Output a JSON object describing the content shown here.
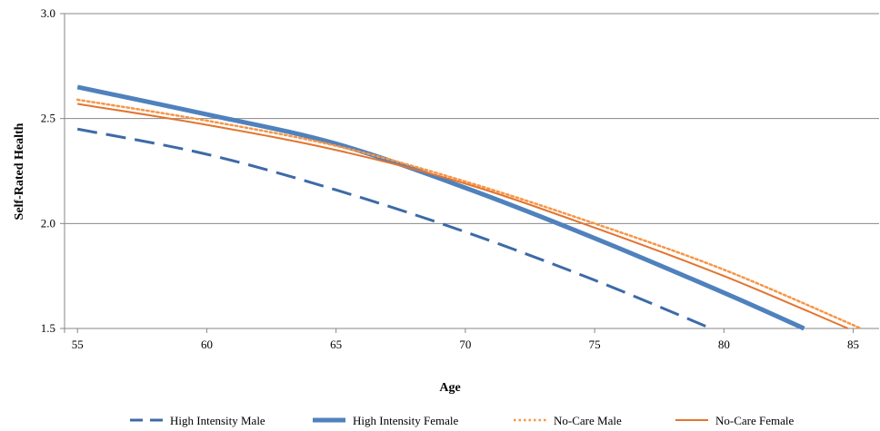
{
  "chart_data": {
    "type": "line",
    "title": "",
    "xlabel": "Age",
    "ylabel": "Self-Rated Health",
    "xlim": [
      54.5,
      86
    ],
    "ylim": [
      1.5,
      3.0
    ],
    "x_ticks": [
      55,
      60,
      65,
      70,
      75,
      80,
      85
    ],
    "y_ticks": [
      1.5,
      2.0,
      2.5,
      3.0
    ],
    "y_tick_labels": [
      "1.5",
      "2.0",
      "2.5",
      "3.0"
    ],
    "grid": "horizontal",
    "legend_position": "bottom",
    "series": [
      {
        "name": "High Intensity Male",
        "color": "#3d6aa8",
        "style": "dashed",
        "x": [
          55,
          60,
          65,
          70,
          75,
          79.5
        ],
        "values": [
          2.45,
          2.33,
          2.16,
          1.96,
          1.73,
          1.5
        ]
      },
      {
        "name": "High Intensity Female",
        "color": "#4f81bd",
        "style": "thick",
        "x": [
          55,
          60,
          65,
          70,
          75,
          80,
          83.1
        ],
        "values": [
          2.65,
          2.52,
          2.38,
          2.17,
          1.93,
          1.67,
          1.5
        ]
      },
      {
        "name": "No-Care Male",
        "color": "#f79646",
        "style": "dotted",
        "x": [
          55,
          60,
          65,
          70,
          75,
          80,
          85.3
        ],
        "values": [
          2.59,
          2.49,
          2.37,
          2.2,
          2.0,
          1.78,
          1.5
        ]
      },
      {
        "name": "No-Care Female",
        "color": "#e3742f",
        "style": "solid",
        "x": [
          55,
          60,
          65,
          70,
          75,
          80,
          84.8
        ],
        "values": [
          2.57,
          2.47,
          2.35,
          2.19,
          1.98,
          1.75,
          1.5
        ]
      }
    ]
  }
}
